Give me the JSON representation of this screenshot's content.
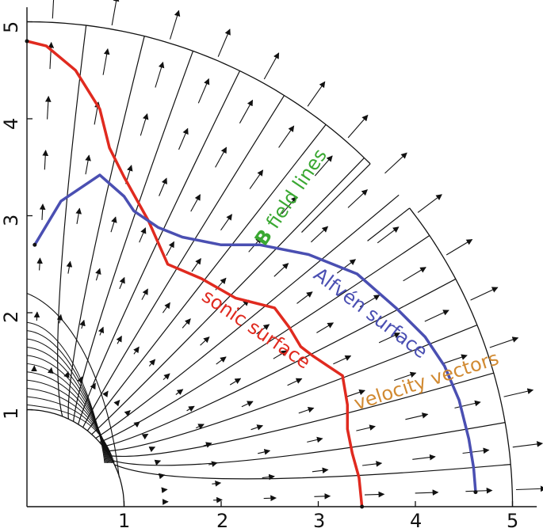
{
  "x_ticks": [
    "1",
    "2",
    "3",
    "4",
    "5"
  ],
  "y_ticks": [
    "1",
    "2",
    "3",
    "4",
    "5"
  ],
  "annotations": {
    "b_field_bold": "B",
    "b_field_rest": " field lines",
    "alfven": "Alfvén surface",
    "sonic": "sonic surface",
    "velocity": "velocity vectors"
  },
  "colors": {
    "sonic": "#e02a1f",
    "alfven": "#4a4fb2",
    "b_field": "#3aa832",
    "velocity": "#d18a32",
    "ink": "#111111"
  },
  "curves": {
    "sonic_surface": [
      [
        0.0,
        4.8
      ],
      [
        0.2,
        4.75
      ],
      [
        0.5,
        4.5
      ],
      [
        0.75,
        4.1
      ],
      [
        0.85,
        3.7
      ],
      [
        1.0,
        3.4
      ],
      [
        1.25,
        2.95
      ],
      [
        1.45,
        2.5
      ],
      [
        1.8,
        2.35
      ],
      [
        2.15,
        2.15
      ],
      [
        2.55,
        2.05
      ],
      [
        2.7,
        1.85
      ],
      [
        2.82,
        1.65
      ],
      [
        2.95,
        1.55
      ],
      [
        3.1,
        1.45
      ],
      [
        3.25,
        1.35
      ],
      [
        3.3,
        1.05
      ],
      [
        3.3,
        0.8
      ],
      [
        3.35,
        0.55
      ],
      [
        3.42,
        0.3
      ],
      [
        3.45,
        0.0
      ]
    ],
    "alfven_surface": [
      [
        0.08,
        2.7
      ],
      [
        0.35,
        3.15
      ],
      [
        0.75,
        3.42
      ],
      [
        1.0,
        3.2
      ],
      [
        1.1,
        3.05
      ],
      [
        1.35,
        2.88
      ],
      [
        1.6,
        2.78
      ],
      [
        2.0,
        2.7
      ],
      [
        2.4,
        2.7
      ],
      [
        2.9,
        2.6
      ],
      [
        3.4,
        2.4
      ],
      [
        3.8,
        2.05
      ],
      [
        4.1,
        1.75
      ],
      [
        4.3,
        1.45
      ],
      [
        4.45,
        1.1
      ],
      [
        4.55,
        0.7
      ],
      [
        4.6,
        0.4
      ],
      [
        4.62,
        0.15
      ]
    ]
  }
}
